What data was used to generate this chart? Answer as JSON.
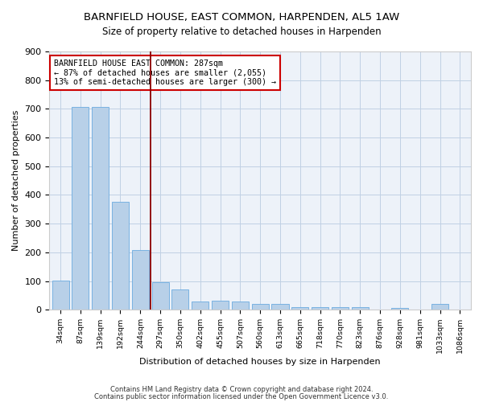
{
  "title1": "BARNFIELD HOUSE, EAST COMMON, HARPENDEN, AL5 1AW",
  "title2": "Size of property relative to detached houses in Harpenden",
  "xlabel": "Distribution of detached houses by size in Harpenden",
  "ylabel": "Number of detached properties",
  "categories": [
    "34sqm",
    "87sqm",
    "139sqm",
    "192sqm",
    "244sqm",
    "297sqm",
    "350sqm",
    "402sqm",
    "455sqm",
    "507sqm",
    "560sqm",
    "613sqm",
    "665sqm",
    "718sqm",
    "770sqm",
    "823sqm",
    "876sqm",
    "928sqm",
    "981sqm",
    "1033sqm",
    "1086sqm"
  ],
  "values": [
    102,
    707,
    707,
    375,
    207,
    95,
    70,
    30,
    32,
    28,
    20,
    21,
    10,
    8,
    10,
    8,
    0,
    6,
    0,
    20,
    0
  ],
  "bar_color": "#b8d0e8",
  "bar_edge_color": "#6aabe0",
  "vline_x": 4.5,
  "vline_color": "#8b0000",
  "annotation_text": "BARNFIELD HOUSE EAST COMMON: 287sqm\n← 87% of detached houses are smaller (2,055)\n13% of semi-detached houses are larger (300) →",
  "annotation_box_color": "#ffffff",
  "annotation_border_color": "#cc0000",
  "footer1": "Contains HM Land Registry data © Crown copyright and database right 2024.",
  "footer2": "Contains public sector information licensed under the Open Government Licence v3.0.",
  "background_color": "#edf2f9",
  "ylim": [
    0,
    900
  ],
  "yticks": [
    0,
    100,
    200,
    300,
    400,
    500,
    600,
    700,
    800,
    900
  ],
  "title1_fontsize": 9.5,
  "title2_fontsize": 8.5,
  "xlabel_fontsize": 8,
  "ylabel_fontsize": 8,
  "annotation_fontsize": 7.2
}
